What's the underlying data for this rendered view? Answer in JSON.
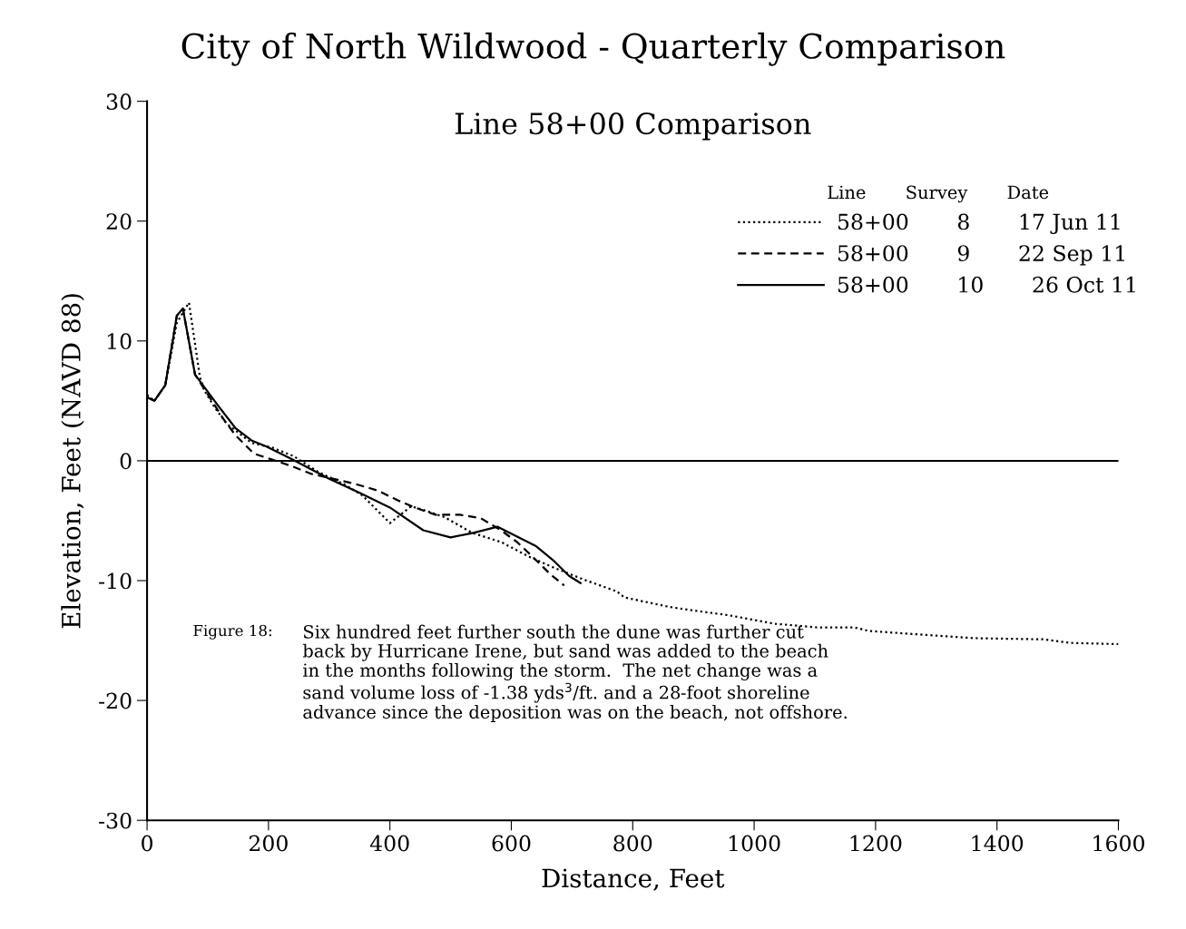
{
  "chart_data": {
    "type": "line",
    "title": "City of North Wildwood - Quarterly Comparison",
    "subtitle": "Line 58+00 Comparison",
    "xlabel": "Distance, Feet",
    "ylabel": "Elevation, Feet (NAVD 88)",
    "xlim": [
      0,
      1600
    ],
    "xticks": [
      0,
      200,
      400,
      600,
      800,
      1000,
      1200,
      1400,
      1600
    ],
    "ylim": [
      -30,
      30
    ],
    "yticks": [
      -30,
      -20,
      -10,
      0,
      10,
      20,
      30
    ],
    "grid": false,
    "legend": "top right",
    "legend_title": "Line       Survey       Date",
    "ref_lines": [
      {
        "axis": "y",
        "value": 0,
        "color": "#000000",
        "line_style": "solid"
      }
    ],
    "annotations": [
      "Figure 18:",
      "Six hundred feet further south the dune was further cut\nback by Hurricane Irene, but sand was added to the beach\nin the months following the storm.  The net change was a\nsand volume loss of -1.38 yds$^{3}$/ft. and a 28-foot shoreline\nadvance since the deposition was on the beach, not offshore."
    ],
    "series": [
      {
        "name": "58+00       8       17 Jun 11",
        "color": "#000000",
        "line_style": "dotted",
        "x": [
          0,
          12,
          30,
          49,
          69,
          87,
          94,
          112,
          131,
          172,
          206,
          241,
          281,
          326,
          355,
          400,
          435,
          455,
          490,
          535,
          584,
          629,
          674,
          724,
          774,
          786,
          861,
          901,
          959,
          1034,
          1103,
          1165,
          1189,
          1274,
          1361,
          1476,
          1522,
          1600
        ],
        "values": [
          5.5,
          5.0,
          6.3,
          11.5,
          13.2,
          7.0,
          5.9,
          4.4,
          3.1,
          1.5,
          1.1,
          0.4,
          -0.9,
          -2.0,
          -2.9,
          -5.2,
          -3.8,
          -4.1,
          -4.7,
          -6.0,
          -6.8,
          -8.0,
          -9.0,
          -10.0,
          -10.9,
          -11.4,
          -12.2,
          -12.5,
          -12.9,
          -13.6,
          -13.9,
          -13.9,
          -14.2,
          -14.5,
          -14.8,
          -14.9,
          -15.2,
          -15.3
        ]
      },
      {
        "name": "58+00       9       22 Sep 11",
        "color": "#000000",
        "line_style": "dashed",
        "x": [
          0,
          12,
          30,
          49,
          59,
          79,
          127,
          146,
          176,
          206,
          241,
          271,
          341,
          381,
          413,
          441,
          475,
          515,
          550,
          583,
          610,
          635,
          665,
          687
        ],
        "values": [
          5.3,
          5.0,
          6.3,
          12.1,
          12.7,
          7.2,
          3.4,
          2.1,
          0.6,
          0.1,
          -0.5,
          -1.1,
          -1.9,
          -2.5,
          -3.3,
          -3.9,
          -4.5,
          -4.5,
          -4.8,
          -5.8,
          -6.8,
          -8.0,
          -9.5,
          -10.4
        ]
      },
      {
        "name": "58+00       10       26 Oct 11",
        "color": "#000000",
        "line_style": "solid",
        "x": [
          0,
          12,
          30,
          49,
          59,
          79,
          117,
          146,
          172,
          196,
          236,
          300,
          351,
          400,
          455,
          500,
          539,
          577,
          640,
          669,
          695,
          714
        ],
        "values": [
          5.3,
          5.0,
          6.3,
          12.1,
          12.7,
          7.2,
          4.6,
          2.7,
          1.7,
          1.2,
          0.2,
          -1.5,
          -2.7,
          -3.9,
          -5.8,
          -6.4,
          -6.0,
          -5.5,
          -7.1,
          -8.3,
          -9.6,
          -10.2
        ]
      }
    ]
  }
}
